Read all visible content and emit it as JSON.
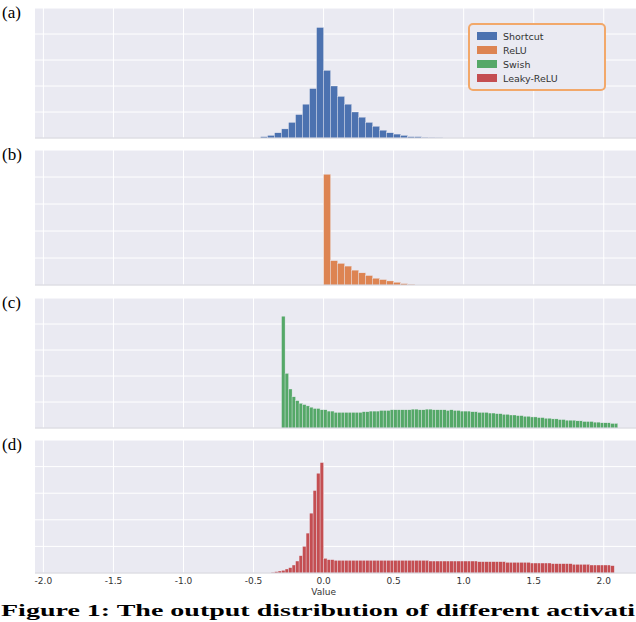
{
  "chart_data": [
    {
      "type": "histogram",
      "title": "(a)",
      "legend": "upper right",
      "grid": true,
      "tick_labels": false,
      "xlim": [
        -2.06,
        2.23
      ],
      "ylim": [
        0,
        100
      ],
      "xticks": [
        {
          "value": -2,
          "label": "-2.0"
        },
        {
          "value": -1.5,
          "label": "-1.5"
        },
        {
          "value": -1,
          "label": "-1.0"
        },
        {
          "value": -0.5,
          "label": "-0.5"
        },
        {
          "value": 0,
          "label": "0.0"
        },
        {
          "value": 0.5,
          "label": "0.5"
        },
        {
          "value": 1,
          "label": "1.0"
        },
        {
          "value": 1.5,
          "label": "1.5"
        },
        {
          "value": 2,
          "label": "2.0"
        }
      ],
      "yticks": [
        0,
        20,
        40,
        60,
        80,
        100
      ],
      "bins": [
        -0.45,
        -0.4,
        -0.35,
        -0.3,
        -0.25,
        -0.2,
        -0.15,
        -0.1,
        -0.05,
        0,
        0.05,
        0.1,
        0.15,
        0.2,
        0.25,
        0.3,
        0.35,
        0.4,
        0.45,
        0.5,
        0.55,
        0.6,
        0.65,
        0.7,
        0.75,
        0.8,
        0.85
      ],
      "series": [
        {
          "name": "Shortcut",
          "color": "#4c72b0",
          "values": [
            1,
            2,
            4,
            7,
            12,
            18,
            26,
            38,
            85,
            52,
            40,
            32,
            26,
            20,
            16,
            12,
            9,
            6,
            4,
            3,
            2,
            1,
            1,
            0.5,
            0.3,
            0.2
          ]
        }
      ]
    },
    {
      "type": "histogram",
      "title": "(b)",
      "grid": true,
      "tick_labels": false,
      "xlim": [
        -2.06,
        2.23
      ],
      "ylim": [
        0,
        100
      ],
      "xticks": [
        {
          "value": -2,
          "label": "-2.0"
        },
        {
          "value": -1.5,
          "label": "-1.5"
        },
        {
          "value": -1,
          "label": "-1.0"
        },
        {
          "value": -0.5,
          "label": "-0.5"
        },
        {
          "value": 0,
          "label": "0.0"
        },
        {
          "value": 0.5,
          "label": "0.5"
        },
        {
          "value": 1,
          "label": "1.0"
        },
        {
          "value": 1.5,
          "label": "1.5"
        },
        {
          "value": 2,
          "label": "2.0"
        }
      ],
      "yticks": [
        0,
        20,
        40,
        60,
        80,
        100
      ],
      "bins": [
        0,
        0.05,
        0.1,
        0.15,
        0.2,
        0.25,
        0.3,
        0.35,
        0.4,
        0.45,
        0.5,
        0.55,
        0.6,
        0.65
      ],
      "series": [
        {
          "name": "ReLU",
          "color": "#dd8452",
          "values": [
            82,
            18,
            16,
            14,
            11,
            9,
            7,
            5,
            4,
            3,
            2,
            1,
            0.5
          ]
        }
      ]
    },
    {
      "type": "histogram",
      "title": "(c)",
      "grid": true,
      "tick_labels": false,
      "xlim": [
        -2.06,
        2.23
      ],
      "ylim": [
        0,
        100
      ],
      "xticks": [
        {
          "value": -2,
          "label": "-2.0"
        },
        {
          "value": -1.5,
          "label": "-1.5"
        },
        {
          "value": -1,
          "label": "-1.0"
        },
        {
          "value": -0.5,
          "label": "-0.5"
        },
        {
          "value": 0,
          "label": "0.0"
        },
        {
          "value": 0.5,
          "label": "0.5"
        },
        {
          "value": 1,
          "label": "1.0"
        },
        {
          "value": 1.5,
          "label": "1.5"
        },
        {
          "value": 2,
          "label": "2.0"
        }
      ],
      "yticks": [
        0,
        20,
        40,
        60,
        80,
        100
      ],
      "bins": [
        -0.3,
        -0.275,
        -0.25,
        -0.225,
        -0.2,
        -0.175,
        -0.15,
        -0.125,
        -0.1,
        -0.075,
        -0.05,
        -0.025,
        0,
        0.025,
        0.05,
        0.075,
        0.1,
        0.125,
        0.15,
        0.175,
        0.2,
        0.225,
        0.25,
        0.275,
        0.3,
        0.325,
        0.35,
        0.375,
        0.4,
        0.425,
        0.45,
        0.475,
        0.5,
        0.525,
        0.55,
        0.575,
        0.6,
        0.625,
        0.65,
        0.675,
        0.7,
        0.725,
        0.75,
        0.775,
        0.8,
        0.825,
        0.85,
        0.875,
        0.9,
        0.925,
        0.95,
        0.975,
        1,
        1.025,
        1.05,
        1.075,
        1.1,
        1.125,
        1.15,
        1.175,
        1.2,
        1.225,
        1.25,
        1.275,
        1.3,
        1.325,
        1.35,
        1.375,
        1.4,
        1.425,
        1.45,
        1.475,
        1.5,
        1.525,
        1.55,
        1.575,
        1.6,
        1.625,
        1.65,
        1.675,
        1.7,
        1.725,
        1.75,
        1.775,
        1.8,
        1.825,
        1.85,
        1.875,
        1.9,
        1.925,
        1.95,
        1.975,
        2,
        2.025,
        2.05,
        2.075,
        2.1
      ],
      "series": [
        {
          "name": "Swish",
          "color": "#55a868",
          "values": [
            86,
            42,
            30,
            24,
            21,
            19,
            18,
            17,
            16,
            15,
            15,
            14,
            14,
            13,
            13,
            12,
            12,
            12,
            12,
            12,
            12,
            12,
            12,
            12.5,
            12.5,
            13,
            13,
            13,
            13.5,
            13.5,
            13.5,
            14,
            14,
            14,
            14,
            14,
            14,
            14.5,
            14.5,
            14,
            14,
            14.5,
            14.5,
            14,
            14,
            14,
            14,
            13.5,
            14,
            13.5,
            13.5,
            13,
            13,
            13,
            12.5,
            12.5,
            12,
            12,
            12,
            11.5,
            11.5,
            11,
            11,
            10.5,
            10.5,
            10,
            10,
            9.5,
            9.5,
            9,
            9,
            8.5,
            8.5,
            8,
            8,
            7.5,
            7.5,
            7,
            7,
            6.5,
            6.5,
            6,
            6,
            6,
            5.5,
            5.5,
            5,
            5,
            5,
            4.5,
            4.5,
            4,
            4,
            4,
            3.5,
            3.5
          ]
        }
      ]
    },
    {
      "type": "histogram",
      "title": "(d)",
      "x_label": "Value",
      "grid": true,
      "tick_labels": "x",
      "xlim": [
        -2.06,
        2.23
      ],
      "ylim": [
        0,
        100
      ],
      "xticks": [
        {
          "value": -2,
          "label": "-2.0"
        },
        {
          "value": -1.5,
          "label": "-1.5"
        },
        {
          "value": -1,
          "label": "-1.0"
        },
        {
          "value": -0.5,
          "label": "-0.5"
        },
        {
          "value": 0,
          "label": "0.0"
        },
        {
          "value": 0.5,
          "label": "0.5"
        },
        {
          "value": 1,
          "label": "1.0"
        },
        {
          "value": 1.5,
          "label": "1.5"
        },
        {
          "value": 2,
          "label": "2.0"
        }
      ],
      "yticks": [
        0,
        20,
        40,
        60,
        80,
        100
      ],
      "bins": [
        -0.375,
        -0.35,
        -0.325,
        -0.3,
        -0.275,
        -0.25,
        -0.225,
        -0.2,
        -0.175,
        -0.15,
        -0.125,
        -0.1,
        -0.075,
        -0.05,
        -0.025,
        0,
        0.025,
        0.05,
        0.075,
        0.1,
        0.125,
        0.15,
        0.175,
        0.2,
        0.225,
        0.25,
        0.275,
        0.3,
        0.325,
        0.35,
        0.375,
        0.4,
        0.425,
        0.45,
        0.475,
        0.5,
        0.525,
        0.55,
        0.575,
        0.6,
        0.625,
        0.65,
        0.675,
        0.7,
        0.725,
        0.75,
        0.775,
        0.8,
        0.825,
        0.85,
        0.875,
        0.9,
        0.925,
        0.95,
        0.975,
        1,
        1.025,
        1.05,
        1.075,
        1.1,
        1.125,
        1.15,
        1.175,
        1.2,
        1.225,
        1.25,
        1.275,
        1.3,
        1.325,
        1.35,
        1.375,
        1.4,
        1.425,
        1.45,
        1.475,
        1.5,
        1.525,
        1.55,
        1.575,
        1.6,
        1.625,
        1.65,
        1.675,
        1.7,
        1.725,
        1.75,
        1.775,
        1.8,
        1.825,
        1.85,
        1.875,
        1.9,
        1.925,
        1.95,
        1.975,
        2,
        2.025,
        2.05,
        2.075,
        2.1
      ],
      "series": [
        {
          "name": "Leaky-ReLU",
          "color": "#c44e52",
          "values": [
            0.5,
            1,
            1.5,
            2,
            3,
            4,
            6,
            9,
            13,
            20,
            30,
            45,
            62,
            75,
            83,
            11,
            10,
            10,
            9.5,
            9.5,
            9.5,
            9.5,
            9.5,
            9.5,
            9.5,
            9.5,
            9.5,
            9.5,
            9.5,
            9.5,
            9.5,
            9.5,
            9.5,
            9.5,
            9.5,
            9.5,
            9.5,
            9.5,
            9.5,
            9.5,
            9.5,
            9.5,
            9.5,
            9.5,
            9.5,
            9,
            9,
            9,
            9,
            9,
            9,
            9,
            9,
            9,
            9,
            9,
            9,
            9,
            9,
            8.5,
            8.5,
            8.5,
            8.5,
            8.5,
            8.5,
            8.5,
            8.5,
            8,
            8,
            8,
            8,
            8,
            8,
            8,
            7.5,
            7.5,
            7.5,
            7.5,
            7.5,
            7.5,
            7,
            7,
            7,
            7,
            7,
            7,
            6.5,
            6.5,
            6.5,
            6.5,
            6.5,
            6,
            6,
            6,
            6,
            6,
            6,
            5.5
          ]
        }
      ]
    }
  ],
  "caption": "Figure 1: The output distribution of different activati"
}
